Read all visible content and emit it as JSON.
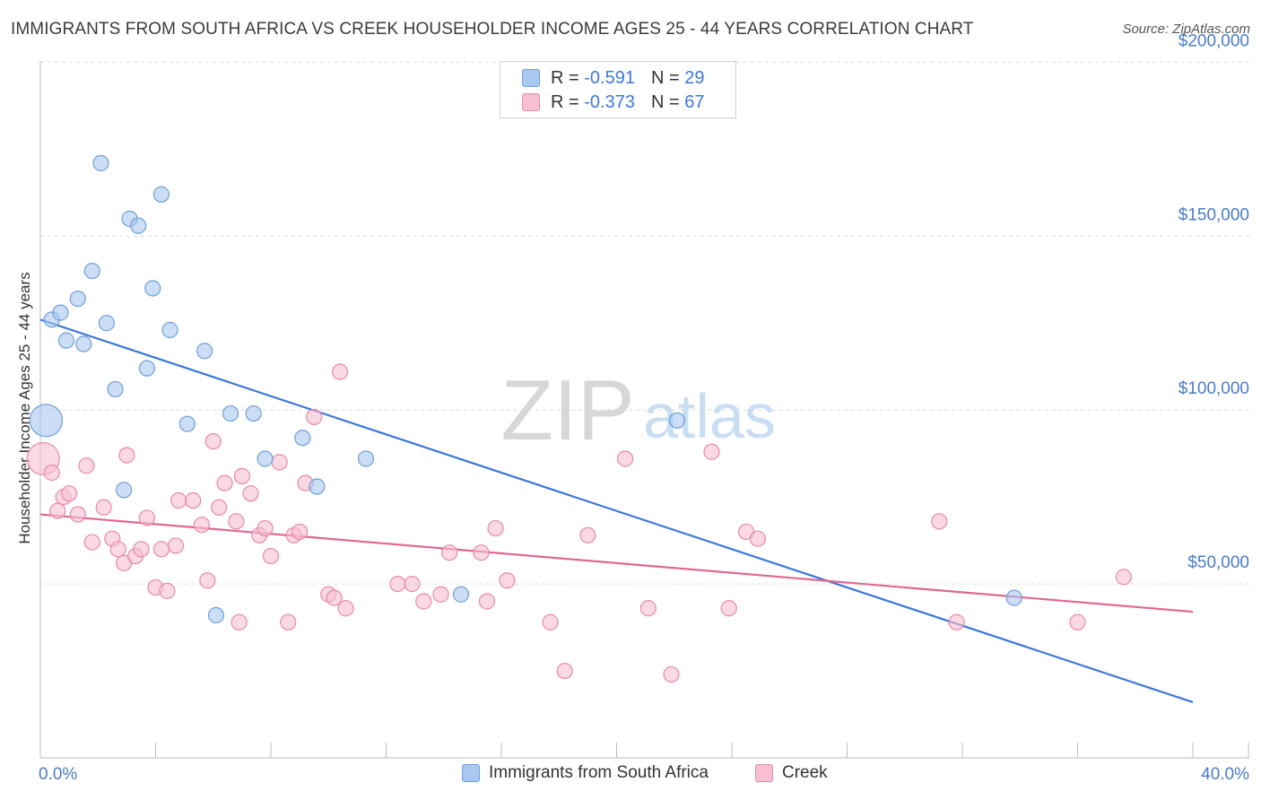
{
  "title": "IMMIGRANTS FROM SOUTH AFRICA VS CREEK HOUSEHOLDER INCOME AGES 25 - 44 YEARS CORRELATION CHART",
  "source": "Source: ZipAtlas.com",
  "watermark": {
    "zip": "ZIP",
    "atlas": "atlas"
  },
  "legend": {
    "series1": {
      "r_label": "R = ",
      "r_value": "-0.591",
      "n_label": "N = ",
      "n_value": "29"
    },
    "series2": {
      "r_label": "R = ",
      "r_value": "-0.373",
      "n_label": "N = ",
      "n_value": "67"
    }
  },
  "bottom_legend": {
    "series1": "Immigrants from South Africa",
    "series2": "Creek"
  },
  "colors": {
    "blue_fill": "#a9c8f0",
    "blue_stroke": "#6f9fd8",
    "blue_line": "#3c78d8",
    "pink_fill": "#f7bfd0",
    "pink_stroke": "#e889a8",
    "pink_line": "#e0688f",
    "axis_text": "#4a7cc7"
  },
  "chart_data": {
    "type": "scatter",
    "title": "IMMIGRANTS FROM SOUTH AFRICA VS CREEK HOUSEHOLDER INCOME AGES 25 - 44 YEARS CORRELATION CHART",
    "xlabel": "",
    "ylabel": "Householder Income Ages 25 - 44 years",
    "xlim": [
      0,
      40
    ],
    "ylim": [
      0,
      205000
    ],
    "x_tick_labels": [
      "0.0%",
      "40.0%"
    ],
    "y_ticks": [
      50000,
      100000,
      150000,
      200000
    ],
    "y_tick_labels": [
      "$50,000",
      "$100,000",
      "$150,000",
      "$200,000"
    ],
    "grid": true,
    "series": [
      {
        "name": "Immigrants from South Africa",
        "color": "#a9c8f0",
        "trend": {
          "x": [
            0,
            40
          ],
          "y": [
            126000,
            16000
          ]
        },
        "points": [
          {
            "x": 0.2,
            "y": 97000,
            "big": true
          },
          {
            "x": 0.4,
            "y": 126000
          },
          {
            "x": 0.7,
            "y": 128000
          },
          {
            "x": 0.9,
            "y": 120000
          },
          {
            "x": 1.3,
            "y": 132000
          },
          {
            "x": 1.5,
            "y": 119000
          },
          {
            "x": 1.8,
            "y": 140000
          },
          {
            "x": 2.1,
            "y": 171000
          },
          {
            "x": 2.3,
            "y": 125000
          },
          {
            "x": 2.6,
            "y": 106000
          },
          {
            "x": 2.9,
            "y": 77000
          },
          {
            "x": 3.1,
            "y": 155000
          },
          {
            "x": 3.4,
            "y": 153000
          },
          {
            "x": 3.7,
            "y": 112000
          },
          {
            "x": 3.9,
            "y": 135000
          },
          {
            "x": 4.2,
            "y": 162000
          },
          {
            "x": 4.5,
            "y": 123000
          },
          {
            "x": 5.1,
            "y": 96000
          },
          {
            "x": 5.7,
            "y": 117000
          },
          {
            "x": 6.1,
            "y": 41000
          },
          {
            "x": 6.6,
            "y": 99000
          },
          {
            "x": 7.4,
            "y": 99000
          },
          {
            "x": 7.8,
            "y": 86000
          },
          {
            "x": 9.1,
            "y": 92000
          },
          {
            "x": 9.6,
            "y": 78000
          },
          {
            "x": 11.3,
            "y": 86000
          },
          {
            "x": 14.6,
            "y": 47000
          },
          {
            "x": 22.1,
            "y": 97000
          },
          {
            "x": 33.8,
            "y": 46000
          }
        ]
      },
      {
        "name": "Creek",
        "color": "#f7bfd0",
        "trend": {
          "x": [
            0,
            40
          ],
          "y": [
            70000,
            42000
          ]
        },
        "points": [
          {
            "x": 0.1,
            "y": 86000,
            "big": true
          },
          {
            "x": 0.4,
            "y": 82000
          },
          {
            "x": 0.6,
            "y": 71000
          },
          {
            "x": 0.8,
            "y": 75000
          },
          {
            "x": 1.0,
            "y": 76000
          },
          {
            "x": 1.3,
            "y": 70000
          },
          {
            "x": 1.6,
            "y": 84000
          },
          {
            "x": 1.8,
            "y": 62000
          },
          {
            "x": 2.2,
            "y": 72000
          },
          {
            "x": 2.5,
            "y": 63000
          },
          {
            "x": 2.7,
            "y": 60000
          },
          {
            "x": 2.9,
            "y": 56000
          },
          {
            "x": 3.0,
            "y": 87000
          },
          {
            "x": 3.3,
            "y": 58000
          },
          {
            "x": 3.5,
            "y": 60000
          },
          {
            "x": 3.7,
            "y": 69000
          },
          {
            "x": 4.0,
            "y": 49000
          },
          {
            "x": 4.2,
            "y": 60000
          },
          {
            "x": 4.4,
            "y": 48000
          },
          {
            "x": 4.7,
            "y": 61000
          },
          {
            "x": 4.8,
            "y": 74000
          },
          {
            "x": 5.3,
            "y": 74000
          },
          {
            "x": 5.6,
            "y": 67000
          },
          {
            "x": 5.8,
            "y": 51000
          },
          {
            "x": 6.0,
            "y": 91000
          },
          {
            "x": 6.2,
            "y": 72000
          },
          {
            "x": 6.4,
            "y": 79000
          },
          {
            "x": 6.8,
            "y": 68000
          },
          {
            "x": 6.9,
            "y": 39000
          },
          {
            "x": 7.0,
            "y": 81000
          },
          {
            "x": 7.3,
            "y": 76000
          },
          {
            "x": 7.6,
            "y": 64000
          },
          {
            "x": 7.8,
            "y": 66000
          },
          {
            "x": 8.0,
            "y": 58000
          },
          {
            "x": 8.3,
            "y": 85000
          },
          {
            "x": 8.6,
            "y": 39000
          },
          {
            "x": 8.8,
            "y": 64000
          },
          {
            "x": 9.0,
            "y": 65000
          },
          {
            "x": 9.2,
            "y": 79000
          },
          {
            "x": 9.5,
            "y": 98000
          },
          {
            "x": 10.0,
            "y": 47000
          },
          {
            "x": 10.2,
            "y": 46000
          },
          {
            "x": 10.4,
            "y": 111000
          },
          {
            "x": 10.6,
            "y": 43000
          },
          {
            "x": 12.4,
            "y": 50000
          },
          {
            "x": 12.9,
            "y": 50000
          },
          {
            "x": 13.3,
            "y": 45000
          },
          {
            "x": 13.9,
            "y": 47000
          },
          {
            "x": 14.2,
            "y": 59000
          },
          {
            "x": 15.3,
            "y": 59000
          },
          {
            "x": 15.5,
            "y": 45000
          },
          {
            "x": 15.8,
            "y": 66000
          },
          {
            "x": 16.2,
            "y": 51000
          },
          {
            "x": 17.7,
            "y": 39000
          },
          {
            "x": 18.2,
            "y": 25000
          },
          {
            "x": 19.0,
            "y": 64000
          },
          {
            "x": 20.3,
            "y": 86000
          },
          {
            "x": 21.1,
            "y": 43000
          },
          {
            "x": 21.9,
            "y": 24000
          },
          {
            "x": 23.3,
            "y": 88000
          },
          {
            "x": 23.9,
            "y": 43000
          },
          {
            "x": 24.5,
            "y": 65000
          },
          {
            "x": 24.9,
            "y": 63000
          },
          {
            "x": 31.2,
            "y": 68000
          },
          {
            "x": 31.8,
            "y": 39000
          },
          {
            "x": 36.0,
            "y": 39000
          },
          {
            "x": 37.6,
            "y": 52000
          }
        ]
      }
    ]
  }
}
